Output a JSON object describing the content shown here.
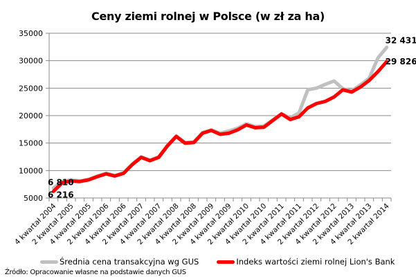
{
  "chart_data": {
    "type": "line",
    "title": "Ceny ziemi rolnej w Polsce (w zł za ha)",
    "xlabel": "",
    "ylabel": "",
    "ylim": [
      5000,
      35000
    ],
    "yticks": [
      5000,
      10000,
      15000,
      20000,
      25000,
      30000,
      35000
    ],
    "grid": true,
    "legend_position": "bottom",
    "x": [
      "4 kwartał 2004",
      "1 kwartał 2005",
      "2 kwartał 2005",
      "3 kwartał 2005",
      "4 kwartał 2005",
      "1 kwartał 2006",
      "2 kwartał 2006",
      "3 kwartał 2006",
      "4 kwartał 2006",
      "1 kwartał 2007",
      "2 kwartał 2007",
      "3 kwartał 2007",
      "4 kwartał 2007",
      "1 kwartał 2008",
      "2 kwartał 2008",
      "3 kwartał 2008",
      "4 kwartał 2008",
      "1 kwartał 2009",
      "2 kwartał 2009",
      "3 kwartał 2009",
      "4 kwartał 2009",
      "1 kwartał 2010",
      "2 kwartał 2010",
      "3 kwartał 2010",
      "4 kwartał 2010",
      "1 kwartał 2011",
      "2 kwartał 2011",
      "3 kwartał 2011",
      "4 kwartał 2011",
      "1 kwartał 2012",
      "2 kwartał 2012",
      "3 kwartał 2012",
      "4 kwartał 2012",
      "1 kwartał 2013",
      "2 kwartał 2013",
      "3 kwartał 2013",
      "4 kwartał 2013",
      "1 kwartał 2014",
      "2 kwartał 2014"
    ],
    "tick_labels_shown": [
      "4 kwartał 2004",
      "2 kwartał 2005",
      "4 kwartał 2005",
      "2 kwartał 2006",
      "4 kwartał 2006",
      "2 kwartał 2007",
      "4 kwartał 2007",
      "2 kwartał 2008",
      "4 kwartał 2008",
      "2 kwartał 2009",
      "4 kwartał 2009",
      "2 kwartał 2010",
      "4 kwartał 2010",
      "2 kwartał 2011",
      "4 kwartał 2011",
      "2 kwartał 2012",
      "4 kwartał 2012",
      "2 kwartał 2013",
      "4 kwartał 2013",
      "2 kwartał 2014"
    ],
    "series": [
      {
        "name": "Średnia cena transakcyjna wg GUS",
        "color": "#c0c0c0",
        "values": [
          6810,
          8000,
          8300,
          8100,
          8400,
          9000,
          9500,
          9100,
          9600,
          11200,
          12500,
          11900,
          12500,
          14600,
          16300,
          15100,
          15200,
          16900,
          17400,
          16800,
          17200,
          17700,
          18500,
          18000,
          18100,
          19200,
          20300,
          19600,
          20500,
          24700,
          25000,
          25700,
          26300,
          24900,
          24500,
          25600,
          26800,
          30500,
          32431
        ]
      },
      {
        "name": "Indeks wartości ziemi rolnej Lion's Bank",
        "color": "#ff0000",
        "values": [
          6216,
          7800,
          8100,
          8000,
          8300,
          8900,
          9400,
          9000,
          9500,
          11100,
          12400,
          11800,
          12400,
          14500,
          16200,
          15000,
          15100,
          16800,
          17300,
          16600,
          16800,
          17400,
          18300,
          17800,
          17900,
          19100,
          20300,
          19300,
          19800,
          21400,
          22200,
          22600,
          23400,
          24700,
          24300,
          25200,
          26400,
          28000,
          29826
        ]
      }
    ],
    "annotations": [
      {
        "text": "6 810",
        "series": 0,
        "index": 0
      },
      {
        "text": "6 216",
        "series": 1,
        "index": 0
      },
      {
        "text": "32 431",
        "series": 0,
        "index": 38
      },
      {
        "text": "29 826",
        "series": 1,
        "index": 38
      }
    ]
  },
  "legend": {
    "items": [
      {
        "label": "Średnia cena transakcyjna wg GUS",
        "color": "#c0c0c0"
      },
      {
        "label": "Indeks wartości ziemi rolnej Lion's Bank",
        "color": "#ff0000"
      }
    ]
  },
  "source": "Źródło: Opracowanie własne na podstawie danych GUS"
}
